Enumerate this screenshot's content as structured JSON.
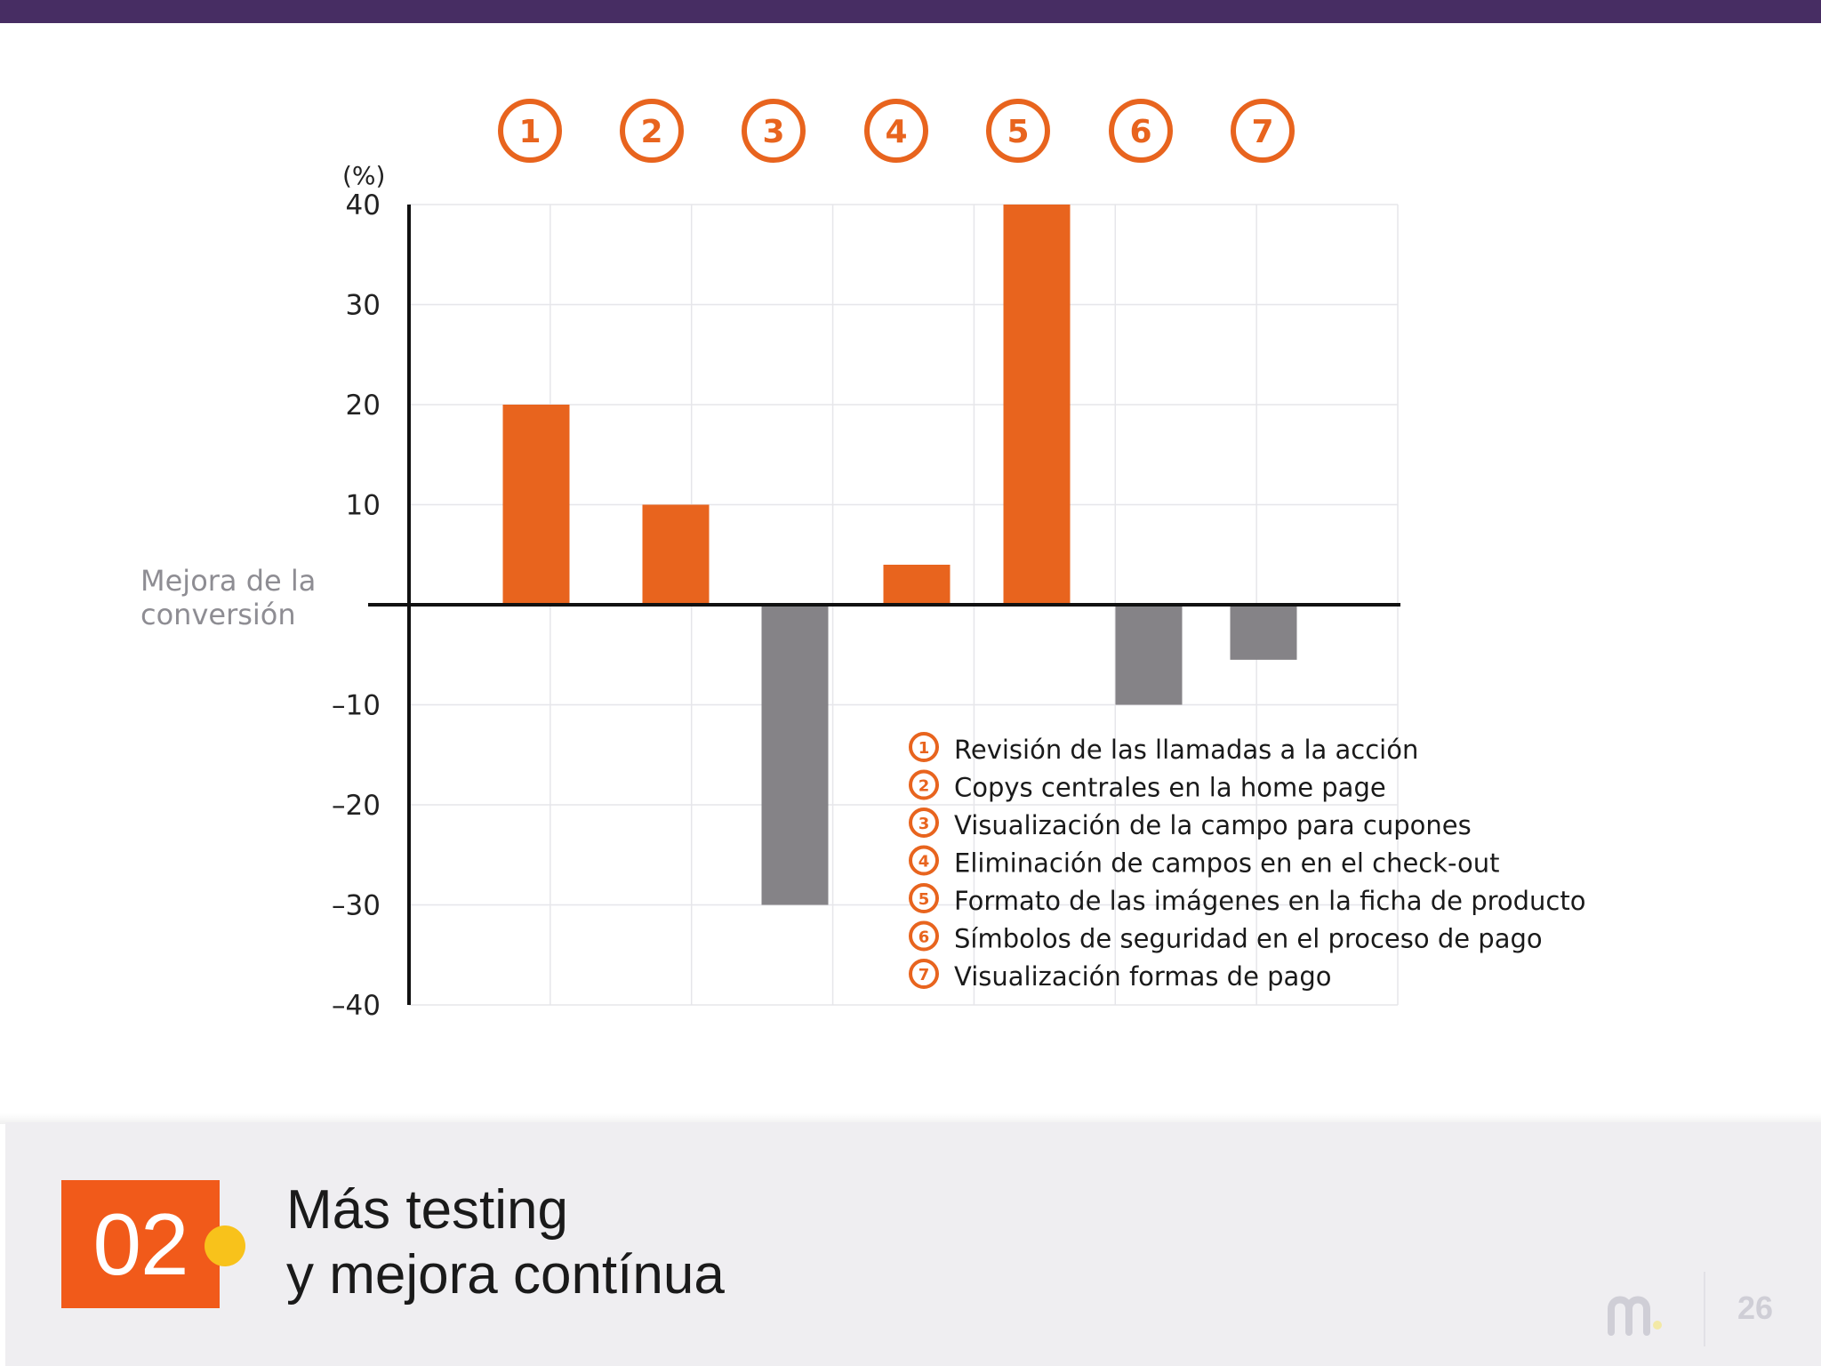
{
  "chart_data": {
    "type": "bar",
    "unit_label": "(%)",
    "ylabel": "Mejora de la conversión",
    "ylim": [
      -40,
      40
    ],
    "yticks": [
      {
        "value": 40,
        "label": "40"
      },
      {
        "value": 30,
        "label": "30"
      },
      {
        "value": 20,
        "label": "20"
      },
      {
        "value": 10,
        "label": "10"
      },
      {
        "value": -10,
        "label": "–10"
      },
      {
        "value": -20,
        "label": "–20"
      },
      {
        "value": -30,
        "label": "–30"
      },
      {
        "value": -40,
        "label": "–40"
      }
    ],
    "categories": [
      "1",
      "2",
      "3",
      "4",
      "5",
      "6",
      "7"
    ],
    "values": [
      20,
      10,
      -30,
      4,
      40,
      -10,
      -5.5
    ],
    "grid": true,
    "legend": [
      {
        "num": "1",
        "label": "Revisión de las llamadas a la acción"
      },
      {
        "num": "2",
        "label": "Copys centrales en la home page"
      },
      {
        "num": "3",
        "label": "Visualización de la campo para cupones"
      },
      {
        "num": "4",
        "label": "Eliminación de campos en en el check-out"
      },
      {
        "num": "5",
        "label": "Formato de las imágenes en la ficha de producto"
      },
      {
        "num": "6",
        "label": "Símbolos de seguridad en el proceso de pago"
      },
      {
        "num": "7",
        "label": "Visualización formas de pago"
      }
    ],
    "legend_position": "bottom-right",
    "colors": {
      "positive": "#e8641e",
      "negative": "#858387",
      "marker": "#e8641e"
    }
  },
  "footer": {
    "section_number": "02",
    "title_line1": "Más testing",
    "title_line2": "y mejora contínua",
    "page_number": "26",
    "logo_icon": "m-logo-icon"
  },
  "colors": {
    "top_bar": "#472d63",
    "section_box": "#f15a1a",
    "section_dot": "#f8c21b"
  }
}
